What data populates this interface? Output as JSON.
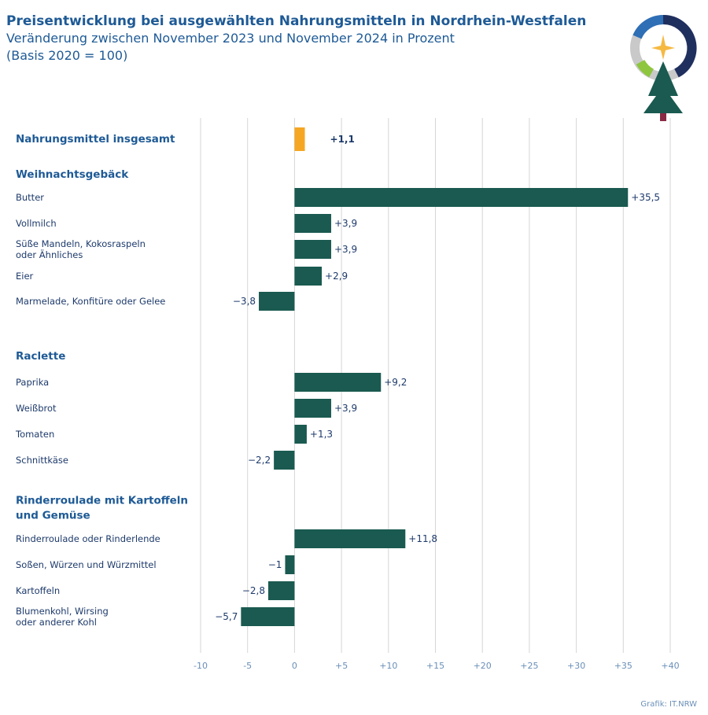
{
  "header": {
    "title": "Preisentwicklung bei ausgewählten Nahrungsmitteln in Nordrhein-Westfalen",
    "subtitle_line1": "Veränderung zwischen November 2023 und November 2024 in Prozent",
    "subtitle_line2": "(Basis 2020 = 100)"
  },
  "footer": {
    "credit": "Grafik: IT.NRW"
  },
  "colors": {
    "bar": "#1a5a50",
    "highlight": "#f5a623",
    "grid": "#d6d6d6",
    "group_heading": "#1e5a96",
    "text": "#1d3a6b",
    "tick": "#6a8fb8"
  },
  "chart_data": {
    "type": "bar",
    "orientation": "horizontal",
    "title": "Preisentwicklung bei ausgewählten Nahrungsmitteln in Nordrhein-Westfalen",
    "subtitle": "Veränderung zwischen November 2023 und November 2024 in Prozent (Basis 2020 = 100)",
    "xlim": [
      -10,
      40
    ],
    "ticks": [
      -10,
      -5,
      0,
      5,
      10,
      15,
      20,
      25,
      30,
      35,
      40
    ],
    "tick_labels": [
      "-10",
      "-5",
      "0",
      "+5",
      "+10",
      "+15",
      "+20",
      "+25",
      "+30",
      "+35",
      "+40"
    ],
    "grid": true,
    "rows": [
      {
        "kind": "bar",
        "bold": true,
        "highlight": true,
        "label": [
          "Nahrungsmittel insgesamt"
        ],
        "value": 1.1,
        "value_label": "+1,1"
      },
      {
        "kind": "group",
        "label": [
          "Weihnachtsgebäck"
        ]
      },
      {
        "kind": "bar",
        "label": [
          "Butter"
        ],
        "value": 35.5,
        "value_label": "+35,5"
      },
      {
        "kind": "bar",
        "label": [
          "Vollmilch"
        ],
        "value": 3.9,
        "value_label": "+3,9"
      },
      {
        "kind": "bar",
        "label": [
          "Süße Mandeln, Kokosraspeln",
          "oder Ähnliches"
        ],
        "value": 3.9,
        "value_label": "+3,9"
      },
      {
        "kind": "bar",
        "label": [
          "Eier"
        ],
        "value": 2.9,
        "value_label": "+2,9"
      },
      {
        "kind": "bar",
        "label": [
          "Marmelade, Konfitüre oder Gelee"
        ],
        "value": -3.8,
        "value_label": "−3,8"
      },
      {
        "kind": "group",
        "label": [
          "Raclette"
        ]
      },
      {
        "kind": "bar",
        "label": [
          "Paprika"
        ],
        "value": 9.2,
        "value_label": "+9,2"
      },
      {
        "kind": "bar",
        "label": [
          "Weißbrot"
        ],
        "value": 3.9,
        "value_label": "+3,9"
      },
      {
        "kind": "bar",
        "label": [
          "Tomaten"
        ],
        "value": 1.3,
        "value_label": "+1,3"
      },
      {
        "kind": "bar",
        "label": [
          "Schnittkäse"
        ],
        "value": -2.2,
        "value_label": "−2,2"
      },
      {
        "kind": "group",
        "label": [
          "Rinderroulade mit Kartoffeln",
          "und Gemüse"
        ]
      },
      {
        "kind": "bar",
        "label": [
          "Rinderroulade oder Rinderlende"
        ],
        "value": 11.8,
        "value_label": "+11,8"
      },
      {
        "kind": "bar",
        "label": [
          "Soßen, Würzen und Würzmittel"
        ],
        "value": -1,
        "value_label": "−1"
      },
      {
        "kind": "bar",
        "label": [
          "Kartoffeln"
        ],
        "value": -2.8,
        "value_label": "−2,8"
      },
      {
        "kind": "bar",
        "label": [
          "Blumenkohl, Wirsing",
          "oder anderer Kohl"
        ],
        "value": -5.7,
        "value_label": "−5,7"
      }
    ]
  }
}
